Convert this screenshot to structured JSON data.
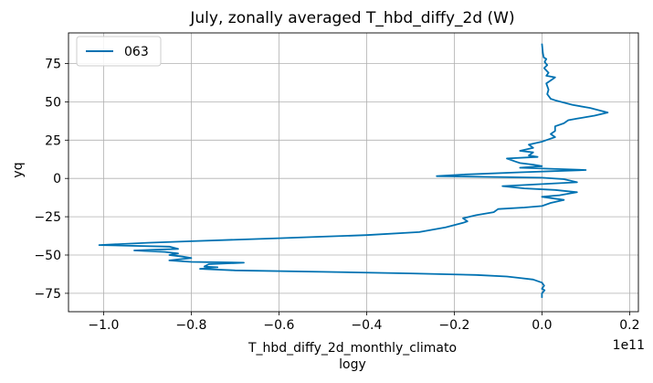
{
  "chart_data": {
    "type": "line",
    "title": "July, zonally averaged T_hbd_diffy_2d (W)",
    "xlabel": "T_hbd_diffy_2d_monthly_climato",
    "xlabel_line2": "logy",
    "ylabel": "yq",
    "x_offset_text": "1e11",
    "x_scale": 100000000000,
    "xlim": [
      -1.08,
      0.22
    ],
    "ylim": [
      -87,
      95
    ],
    "x_ticks": [
      -1.0,
      -0.8,
      -0.6,
      -0.4,
      -0.2,
      0.0,
      0.2
    ],
    "x_tick_labels": [
      "−1.0",
      "−0.8",
      "−0.6",
      "−0.4",
      "−0.2",
      "0.0",
      "0.2"
    ],
    "y_ticks": [
      75,
      50,
      25,
      0,
      -25,
      -50,
      -75
    ],
    "y_tick_labels": [
      "75",
      "50",
      "25",
      "0",
      "−25",
      "−50",
      "−75"
    ],
    "grid": true,
    "legend": {
      "position": "upper-left"
    },
    "series": [
      {
        "name": "063",
        "color": "#0072b2",
        "x_units": "1e11",
        "points": [
          [
            0.0,
            88
          ],
          [
            0.002,
            82
          ],
          [
            0.004,
            79
          ],
          [
            0.01,
            78
          ],
          [
            0.006,
            76
          ],
          [
            0.012,
            74
          ],
          [
            0.005,
            72
          ],
          [
            0.015,
            69
          ],
          [
            0.01,
            67
          ],
          [
            0.03,
            66
          ],
          [
            0.02,
            64
          ],
          [
            0.01,
            62
          ],
          [
            0.015,
            58
          ],
          [
            0.012,
            55
          ],
          [
            0.02,
            52
          ],
          [
            0.03,
            51
          ],
          [
            0.07,
            48
          ],
          [
            0.11,
            46
          ],
          [
            0.15,
            43
          ],
          [
            0.12,
            41
          ],
          [
            0.08,
            39
          ],
          [
            0.06,
            38
          ],
          [
            0.05,
            36
          ],
          [
            0.03,
            34
          ],
          [
            0.03,
            31
          ],
          [
            0.02,
            29
          ],
          [
            0.03,
            27
          ],
          [
            0.01,
            25
          ],
          [
            0.0,
            24
          ],
          [
            -0.03,
            22
          ],
          [
            -0.02,
            20
          ],
          [
            -0.05,
            18
          ],
          [
            -0.02,
            17
          ],
          [
            -0.03,
            15
          ],
          [
            -0.01,
            14
          ],
          [
            -0.08,
            13
          ],
          [
            -0.06,
            11
          ],
          [
            -0.05,
            10
          ],
          [
            -0.02,
            9
          ],
          [
            0.0,
            8
          ],
          [
            -0.05,
            7
          ],
          [
            0.05,
            6
          ],
          [
            0.1,
            5.5
          ],
          [
            -0.05,
            4
          ],
          [
            -0.18,
            2.5
          ],
          [
            -0.24,
            1.5
          ],
          [
            0.0,
            0.5
          ],
          [
            0.05,
            -0.5
          ],
          [
            0.08,
            -2.5
          ],
          [
            -0.02,
            -4
          ],
          [
            -0.09,
            -5
          ],
          [
            -0.04,
            -6.5
          ],
          [
            0.03,
            -7.5
          ],
          [
            0.08,
            -9
          ],
          [
            0.04,
            -11
          ],
          [
            0.0,
            -12
          ],
          [
            0.05,
            -14
          ],
          [
            0.02,
            -16
          ],
          [
            0.0,
            -18
          ],
          [
            -0.04,
            -19
          ],
          [
            -0.1,
            -20
          ],
          [
            -0.11,
            -22
          ],
          [
            -0.15,
            -24
          ],
          [
            -0.18,
            -26
          ],
          [
            -0.17,
            -28
          ],
          [
            -0.18,
            -29
          ],
          [
            -0.22,
            -32
          ],
          [
            -0.28,
            -35
          ],
          [
            -0.4,
            -37
          ],
          [
            -0.5,
            -38
          ],
          [
            -0.6,
            -39
          ],
          [
            -0.8,
            -41
          ],
          [
            -0.9,
            -42
          ],
          [
            -1.01,
            -43.5
          ],
          [
            -0.85,
            -44.5
          ],
          [
            -0.83,
            -46
          ],
          [
            -0.93,
            -47
          ],
          [
            -0.86,
            -48
          ],
          [
            -0.83,
            -49
          ],
          [
            -0.85,
            -50
          ],
          [
            -0.82,
            -51
          ],
          [
            -0.8,
            -52
          ],
          [
            -0.85,
            -53.5
          ],
          [
            -0.8,
            -54.5
          ],
          [
            -0.68,
            -55
          ],
          [
            -0.76,
            -56
          ],
          [
            -0.77,
            -57.5
          ],
          [
            -0.74,
            -58
          ],
          [
            -0.78,
            -59
          ],
          [
            -0.7,
            -60
          ],
          [
            -0.5,
            -61
          ],
          [
            -0.3,
            -62
          ],
          [
            -0.15,
            -63
          ],
          [
            -0.08,
            -64
          ],
          [
            -0.05,
            -65
          ],
          [
            -0.02,
            -66
          ],
          [
            0.0,
            -68
          ],
          [
            0.005,
            -70
          ],
          [
            0.0,
            -72
          ],
          [
            0.006,
            -73
          ],
          [
            0.0,
            -75
          ],
          [
            0.0,
            -78
          ]
        ]
      }
    ]
  }
}
